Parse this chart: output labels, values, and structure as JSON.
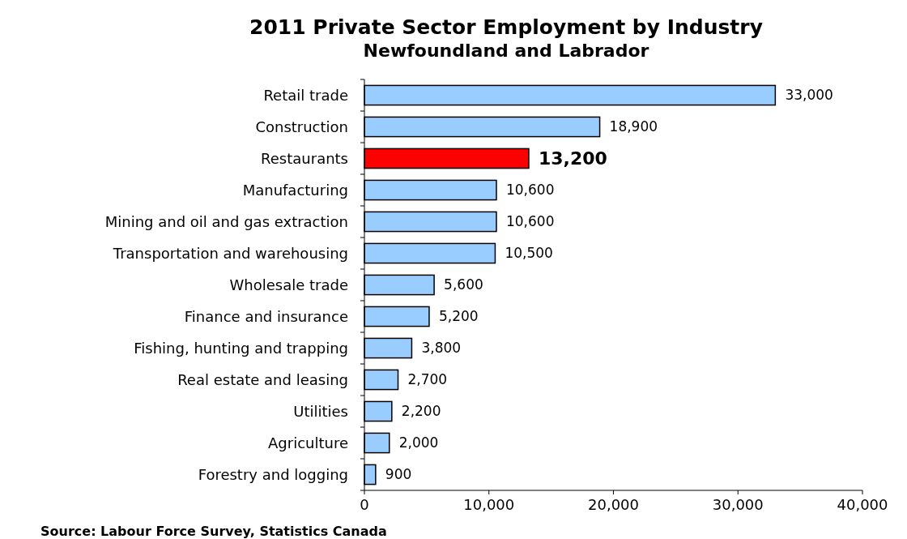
{
  "chart_data": {
    "type": "bar",
    "orientation": "horizontal",
    "title": "2011 Private Sector Employment by Industry",
    "subtitle": "Newfoundland and Labrador",
    "categories": [
      "Retail trade",
      "Construction",
      "Restaurants",
      "Manufacturing",
      "Mining and oil and gas extraction",
      "Transportation and warehousing",
      "Wholesale trade",
      "Finance and insurance",
      "Fishing, hunting and trapping",
      "Real estate and leasing",
      "Utilities",
      "Agriculture",
      "Forestry and logging"
    ],
    "values": [
      33000,
      18900,
      13200,
      10600,
      10600,
      10500,
      5600,
      5200,
      3800,
      2700,
      2200,
      2000,
      900
    ],
    "colors": [
      "#99ccff",
      "#99ccff",
      "#ff0000",
      "#99ccff",
      "#99ccff",
      "#99ccff",
      "#99ccff",
      "#99ccff",
      "#99ccff",
      "#99ccff",
      "#99ccff",
      "#99ccff",
      "#99ccff"
    ],
    "value_labels": [
      "33,000",
      "18,900",
      "13,200",
      "10,600",
      "10,600",
      "10,500",
      "5,600",
      "5,200",
      "3,800",
      "2,700",
      "2,200",
      "2,000",
      "900"
    ],
    "xlim": [
      0,
      40000
    ],
    "xticks": [
      0,
      {
        "value": 10000,
        "label": "10,000"
      },
      {
        "value": 20000,
        "label": "20,000"
      },
      {
        "value": 30000,
        "label": "30,000"
      },
      {
        "value": 40000,
        "label": "40,000"
      }
    ],
    "annotations": [
      "Source:  Labour Force Survey, Statistics Canada"
    ]
  }
}
